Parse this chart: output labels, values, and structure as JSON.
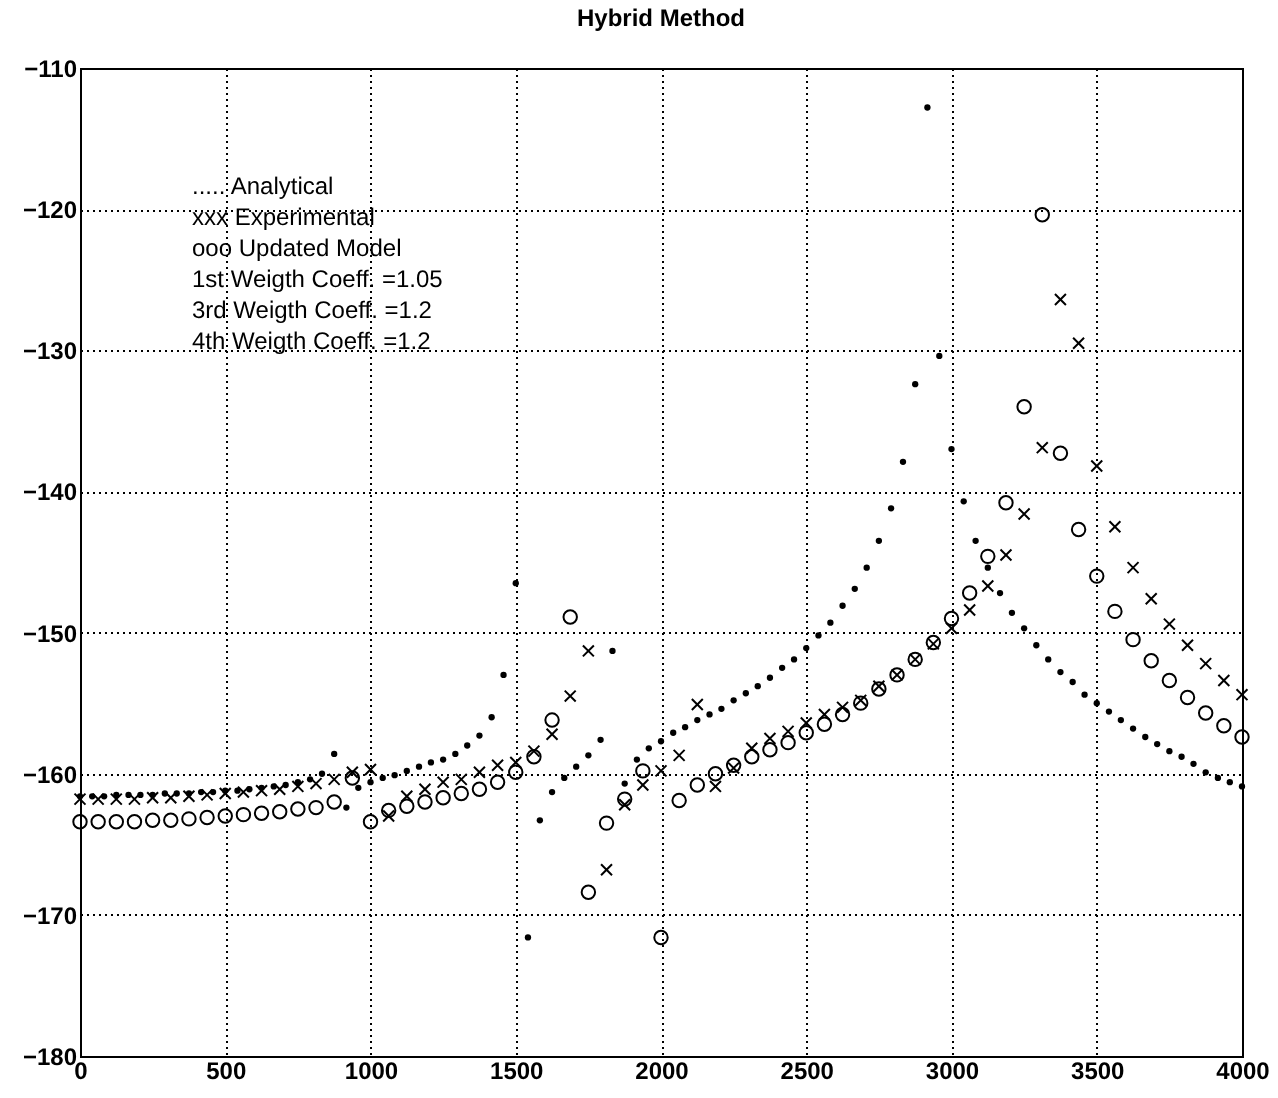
{
  "chart_data": {
    "type": "scatter",
    "title": "Hybrid Method",
    "annotations": [
      "..... Analytical",
      "xxx Experimental",
      "ooo Updated Model",
      "1st Weigth Coeff. =1.05",
      "3rd Weigth Coeff. =1.2",
      "4th Weigth Coeff. =1.2"
    ],
    "x": [
      0,
      62.5,
      125,
      187.5,
      250,
      312.5,
      375,
      437.5,
      500,
      562.5,
      625,
      687.5,
      750,
      812.5,
      875,
      937.5,
      1000,
      1062.5,
      1125,
      1187.5,
      1250,
      1312.5,
      1375,
      1437.5,
      1500,
      1562.5,
      1625,
      1687.5,
      1750,
      1812.5,
      1875,
      1937.5,
      2000,
      2062.5,
      2125,
      2187.5,
      2250,
      2312.5,
      2375,
      2437.5,
      2500,
      2562.5,
      2625,
      2687.5,
      2750,
      2812.5,
      2875,
      2937.5,
      3000,
      3062.5,
      3125,
      3187.5,
      3250,
      3312.5,
      3375,
      3437.5,
      3500,
      3562.5,
      3625,
      3687.5,
      3750,
      3812.5,
      3875,
      3937.5,
      4000
    ],
    "series": [
      {
        "color": "#000000",
        "marker": "circle",
        "x": [
          0,
          42,
          83,
          125,
          167,
          208,
          250,
          292,
          333,
          375,
          417,
          458,
          500,
          542,
          583,
          625,
          667,
          708,
          750,
          792,
          833,
          875,
          917,
          958,
          1000,
          1042,
          1083,
          1125,
          1167,
          1208,
          1250,
          1292,
          1333,
          1375,
          1417,
          1458,
          1500,
          1542,
          1583,
          1625,
          1667,
          1708,
          1750,
          1792,
          1833,
          1875,
          1917,
          1958,
          2000,
          2042,
          2083,
          2125,
          2167,
          2208,
          2250,
          2292,
          2333,
          2375,
          2417,
          2458,
          2500,
          2542,
          2583,
          2625,
          2667,
          2708,
          2750,
          2792,
          2833,
          2875,
          2917,
          2958,
          3000,
          3042,
          3083,
          3125,
          3167,
          3208,
          3250,
          3292,
          3333,
          3375,
          3417,
          3458,
          3500,
          3542,
          3583,
          3625,
          3667,
          3708,
          3750,
          3792,
          3833,
          3875,
          3917,
          3958,
          4000
        ],
        "values": [
          -161.6,
          -161.6,
          -161.6,
          -161.5,
          -161.5,
          -161.5,
          -161.5,
          -161.4,
          -161.4,
          -161.4,
          -161.3,
          -161.3,
          -161.2,
          -161.2,
          -161.1,
          -161.0,
          -160.9,
          -160.8,
          -160.6,
          -160.4,
          -160.0,
          -158.6,
          -162.4,
          -161.0,
          -160.6,
          -160.3,
          -160.1,
          -159.8,
          -159.5,
          -159.2,
          -159.0,
          -158.6,
          -158.0,
          -157.3,
          -156.0,
          -153.0,
          -146.5,
          -171.6,
          -163.3,
          -161.3,
          -160.3,
          -159.5,
          -158.7,
          -157.6,
          -151.3,
          -160.7,
          -159.0,
          -158.2,
          -157.7,
          -157.1,
          -156.7,
          -156.2,
          -155.8,
          -155.4,
          -154.8,
          -154.3,
          -153.8,
          -153.2,
          -152.5,
          -151.9,
          -151.1,
          -150.2,
          -149.3,
          -148.1,
          -146.9,
          -145.4,
          -143.5,
          -141.2,
          -137.9,
          -132.4,
          -112.8,
          -130.4,
          -137.0,
          -140.7,
          -143.5,
          -145.4,
          -147.2,
          -148.6,
          -149.7,
          -150.9,
          -151.9,
          -152.8,
          -153.5,
          -154.4,
          -155.0,
          -155.6,
          -156.2,
          -156.8,
          -157.4,
          -157.9,
          -158.4,
          -158.8,
          -159.3,
          -159.9,
          -160.3,
          -160.6,
          -160.9
        ]
      },
      {
        "color": "#000000",
        "marker": "cross",
        "values": [
          -161.8,
          -161.8,
          -161.8,
          -161.8,
          -161.7,
          -161.7,
          -161.6,
          -161.5,
          -161.4,
          -161.3,
          -161.2,
          -161.1,
          -160.9,
          -160.7,
          -160.4,
          -159.9,
          -159.7,
          -163.0,
          -161.6,
          -161.1,
          -160.6,
          -160.4,
          -159.9,
          -159.4,
          -159.2,
          -158.4,
          -157.2,
          -154.5,
          -151.3,
          -166.8,
          -162.2,
          -160.8,
          -159.8,
          -158.7,
          -155.1,
          -160.9,
          -159.6,
          -158.2,
          -157.5,
          -157.0,
          -156.4,
          -155.8,
          -155.3,
          -154.8,
          -153.8,
          -153.0,
          -151.9,
          -150.8,
          -149.7,
          -148.4,
          -146.7,
          -144.5,
          -141.6,
          -136.9,
          -126.4,
          -129.5,
          -138.2,
          -142.5,
          -145.4,
          -147.6,
          -149.4,
          -150.9,
          -152.2,
          -153.4,
          -154.4
        ]
      },
      {
        "color": "#000000",
        "marker": "circle",
        "values": [
          -163.4,
          -163.4,
          -163.4,
          -163.4,
          -163.3,
          -163.3,
          -163.2,
          -163.1,
          -163.0,
          -162.9,
          -162.8,
          -162.7,
          -162.5,
          -162.4,
          -162.0,
          -160.3,
          -163.4,
          -162.6,
          -162.3,
          -162.0,
          -161.7,
          -161.4,
          -161.1,
          -160.6,
          -159.9,
          -158.8,
          -156.2,
          -148.9,
          -168.4,
          -163.5,
          -161.8,
          -159.8,
          -171.6,
          -161.9,
          -160.8,
          -160.0,
          -159.4,
          -158.8,
          -158.3,
          -157.8,
          -157.1,
          -156.5,
          -155.8,
          -155.0,
          -154.0,
          -153.0,
          -151.9,
          -150.7,
          -149.0,
          -147.2,
          -144.6,
          -140.8,
          -134.0,
          -120.4,
          -137.3,
          -142.7,
          -146.0,
          -148.5,
          -150.5,
          -152.0,
          -153.4,
          -154.6,
          -155.7,
          -156.6,
          -157.4
        ]
      }
    ],
    "xlim": [
      0,
      4000
    ],
    "xticks": [
      0,
      500,
      1000,
      1500,
      2000,
      2500,
      3000,
      3500,
      4000
    ],
    "ylim": [
      -180,
      -110
    ],
    "yticks": [
      -180,
      -170,
      -160,
      -150,
      -140,
      -130,
      -120,
      -110
    ],
    "grid": true
  }
}
